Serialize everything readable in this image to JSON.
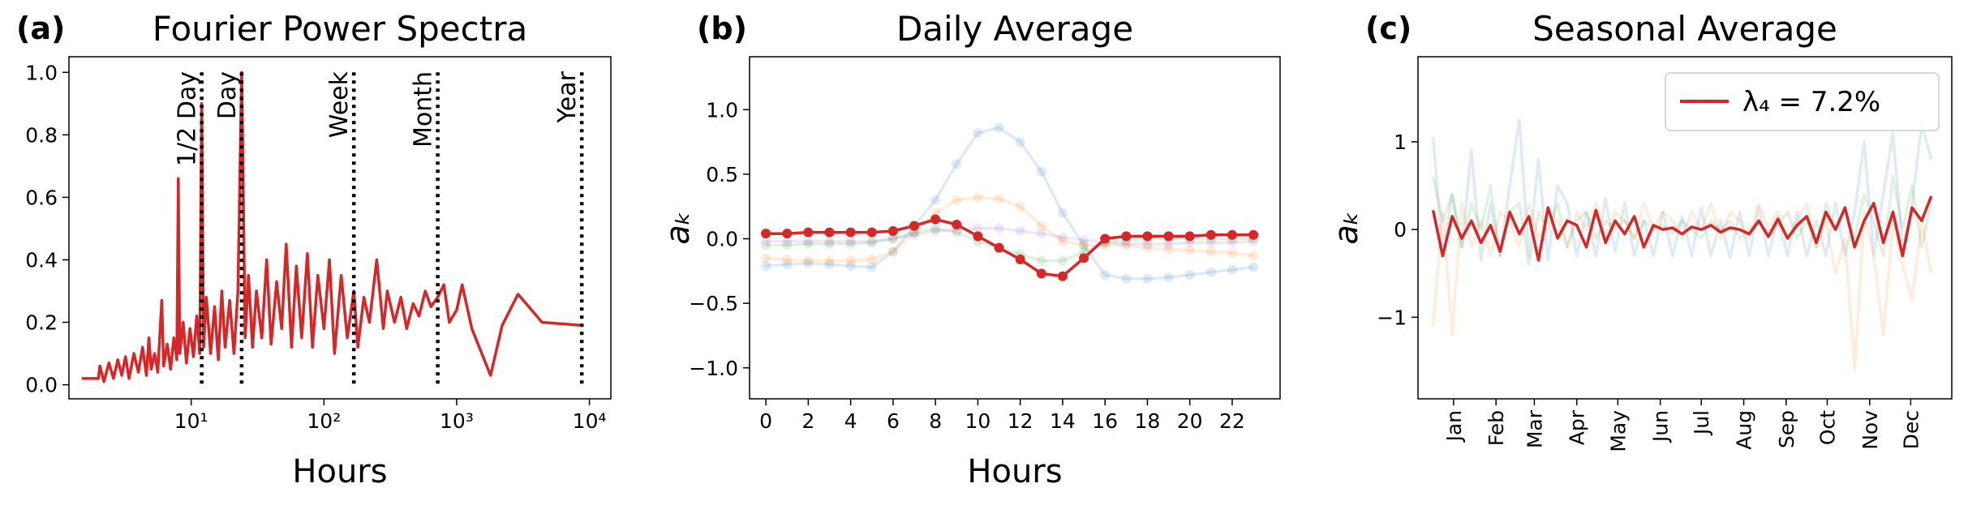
{
  "chart_data": [
    {
      "type": "line",
      "panel_label": "(a)",
      "title": "Fourier Power Spectra",
      "xlabel": "Hours",
      "xscale": "log",
      "xlim": [
        1.2,
        14500
      ],
      "ylim": [
        -0.045,
        1.05
      ],
      "xticks": [
        {
          "value": 10,
          "label": "10¹"
        },
        {
          "value": 100,
          "label": "10²"
        },
        {
          "value": 1000,
          "label": "10³"
        },
        {
          "value": 10000,
          "label": "10⁴"
        }
      ],
      "yticks": [
        {
          "value": 0,
          "label": "0.0"
        },
        0.2,
        0.4,
        0.6,
        0.8,
        {
          "value": 1,
          "label": "1.0"
        }
      ],
      "x": [
        1.5,
        2,
        2.05,
        2.2,
        2.4,
        2.6,
        2.8,
        3,
        3.2,
        3.4,
        3.7,
        4,
        4.3,
        4.6,
        4.8,
        5,
        5.3,
        5.6,
        6,
        6.2,
        6.6,
        7,
        7.4,
        7.8,
        8,
        8.2,
        8.7,
        9.2,
        9.8,
        10.4,
        11,
        11.6,
        12,
        12.4,
        13,
        14,
        15,
        16,
        17,
        18,
        19.5,
        21,
        22.5,
        24,
        25.5,
        27,
        29,
        31,
        34,
        37,
        40,
        44,
        48,
        52,
        57,
        62,
        68,
        75,
        82,
        90,
        100,
        110,
        120,
        135,
        150,
        168,
        180,
        200,
        220,
        250,
        280,
        300,
        340,
        380,
        420,
        470,
        520,
        580,
        640,
        720,
        800,
        880,
        1000,
        1100,
        1300,
        1800,
        2200,
        2900,
        4400,
        8760
      ],
      "series": [
        {
          "color": "#d62728",
          "values": [
            0.02,
            0.02,
            0.06,
            0.01,
            0.07,
            0.02,
            0.08,
            0.03,
            0.09,
            0.02,
            0.1,
            0.04,
            0.12,
            0.03,
            0.15,
            0.05,
            0.1,
            0.04,
            0.27,
            0.06,
            0.13,
            0.05,
            0.15,
            0.08,
            0.66,
            0.1,
            0.2,
            0.07,
            0.18,
            0.09,
            0.22,
            0.1,
            0.9,
            0.12,
            0.28,
            0.1,
            0.25,
            0.08,
            0.3,
            0.12,
            0.27,
            0.1,
            0.3,
            1.0,
            0.15,
            0.35,
            0.12,
            0.3,
            0.15,
            0.4,
            0.13,
            0.33,
            0.18,
            0.45,
            0.12,
            0.38,
            0.15,
            0.42,
            0.12,
            0.35,
            0.18,
            0.4,
            0.1,
            0.35,
            0.15,
            0.3,
            0.12,
            0.28,
            0.2,
            0.4,
            0.18,
            0.3,
            0.2,
            0.28,
            0.18,
            0.26,
            0.22,
            0.3,
            0.25,
            0.28,
            0.32,
            0.2,
            0.24,
            0.32,
            0.18,
            0.03,
            0.19,
            0.29,
            0.2,
            0.19
          ]
        }
      ],
      "markers": [
        {
          "x": 12,
          "label": "1/2 Day"
        },
        {
          "x": 24,
          "label": "Day"
        },
        {
          "x": 168,
          "label": "Week"
        },
        {
          "x": 720,
          "label": "Month"
        },
        {
          "x": 8760,
          "label": "Year"
        }
      ]
    },
    {
      "type": "line",
      "panel_label": "(b)",
      "title": "Daily Average",
      "xlabel": "Hours",
      "ylabel": "aₖ",
      "marker": true,
      "xlim": [
        -0.77,
        24.26
      ],
      "ylim": [
        -1.24,
        1.41
      ],
      "xticks": [
        0,
        2,
        4,
        6,
        8,
        10,
        12,
        14,
        16,
        18,
        20,
        22
      ],
      "yticks": [
        {
          "value": -1,
          "label": "−1.0"
        },
        {
          "value": -0.5,
          "label": "−0.5"
        },
        {
          "value": 0,
          "label": "0.0"
        },
        0.5,
        {
          "value": 1,
          "label": "1.0"
        }
      ],
      "x": [
        0,
        1,
        2,
        3,
        4,
        5,
        6,
        7,
        8,
        9,
        10,
        11,
        12,
        13,
        14,
        15,
        16,
        17,
        18,
        19,
        20,
        21,
        22,
        23
      ],
      "series": [
        {
          "color": "#1f77b4",
          "alpha": 0.15,
          "values": [
            -0.21,
            -0.2,
            -0.19,
            -0.2,
            -0.21,
            -0.22,
            -0.1,
            0.1,
            0.3,
            0.58,
            0.82,
            0.86,
            0.75,
            0.52,
            0.2,
            -0.05,
            -0.28,
            -0.31,
            -0.31,
            -0.3,
            -0.28,
            -0.26,
            -0.24,
            -0.22
          ]
        },
        {
          "color": "#ff7f0e",
          "alpha": 0.15,
          "values": [
            -0.15,
            -0.16,
            -0.17,
            -0.17,
            -0.17,
            -0.16,
            -0.1,
            0.05,
            0.2,
            0.3,
            0.32,
            0.31,
            0.25,
            0.1,
            -0.02,
            -0.05,
            -0.05,
            -0.05,
            -0.07,
            -0.08,
            -0.09,
            -0.1,
            -0.11,
            -0.13
          ]
        },
        {
          "color": "#2ca02c",
          "alpha": 0.15,
          "values": [
            -0.05,
            -0.05,
            -0.04,
            -0.04,
            -0.04,
            -0.03,
            0.0,
            0.05,
            0.08,
            0.05,
            -0.02,
            -0.07,
            -0.12,
            -0.17,
            -0.17,
            -0.1,
            -0.03,
            -0.01,
            0.0,
            0.0,
            0.0,
            0.0,
            0.0,
            0.0
          ]
        },
        {
          "color": "#9467bd",
          "alpha": 0.15,
          "values": [
            -0.02,
            -0.02,
            -0.02,
            -0.02,
            -0.02,
            -0.02,
            0.0,
            0.03,
            0.06,
            0.07,
            0.08,
            0.08,
            0.06,
            0.04,
            0.01,
            -0.01,
            -0.03,
            -0.04,
            -0.04,
            -0.04,
            -0.03,
            -0.03,
            -0.03,
            -0.02
          ]
        },
        {
          "color": "#d62728",
          "values": [
            0.04,
            0.04,
            0.05,
            0.05,
            0.05,
            0.05,
            0.06,
            0.1,
            0.15,
            0.11,
            0.02,
            -0.07,
            -0.16,
            -0.27,
            -0.29,
            -0.15,
            0.0,
            0.02,
            0.02,
            0.02,
            0.02,
            0.03,
            0.03,
            0.03
          ]
        }
      ]
    },
    {
      "type": "line",
      "panel_label": "(c)",
      "title": "Seasonal Average",
      "ylabel": "aₖ",
      "legend": "upper right",
      "xlim": [
        -11,
        379
      ],
      "ylim": [
        -1.93,
        1.97
      ],
      "xticks": [
        {
          "value": 15,
          "label": "Jan"
        },
        {
          "value": 46,
          "label": "Feb"
        },
        {
          "value": 74,
          "label": "Mar"
        },
        {
          "value": 105,
          "label": "Apr"
        },
        {
          "value": 135,
          "label": "May"
        },
        {
          "value": 166,
          "label": "Jun"
        },
        {
          "value": 196,
          "label": "Jul"
        },
        {
          "value": 227,
          "label": "Aug"
        },
        {
          "value": 258,
          "label": "Sep"
        },
        {
          "value": 288,
          "label": "Oct"
        },
        {
          "value": 319,
          "label": "Nov"
        },
        {
          "value": 349,
          "label": "Dec"
        }
      ],
      "yticks": [
        {
          "value": -1,
          "label": "−1"
        },
        0,
        1
      ],
      "x": [
        0,
        7,
        14,
        21,
        28,
        35,
        42,
        49,
        56,
        63,
        70,
        77,
        84,
        91,
        98,
        105,
        112,
        119,
        126,
        133,
        140,
        147,
        154,
        161,
        168,
        175,
        182,
        189,
        196,
        203,
        210,
        217,
        224,
        231,
        238,
        245,
        252,
        259,
        266,
        273,
        280,
        287,
        294,
        301,
        308,
        315,
        322,
        329,
        336,
        343,
        350,
        357,
        364
      ],
      "series": [
        {
          "color": "#1f77b4",
          "alpha": 0.15,
          "values": [
            1.05,
            -0.3,
            0.4,
            -0.2,
            0.9,
            -0.35,
            0.3,
            -0.3,
            0.5,
            1.25,
            -0.3,
            0.8,
            -0.35,
            0.5,
            0.3,
            -0.3,
            0.2,
            -0.3,
            0.35,
            -0.25,
            0.3,
            -0.3,
            0.1,
            -0.3,
            0.2,
            -0.3,
            0.15,
            -0.3,
            0.25,
            -0.3,
            0.1,
            -0.32,
            0.2,
            -0.3,
            0.25,
            -0.3,
            0.15,
            -0.3,
            0.2,
            -0.3,
            0.1,
            -0.3,
            0.3,
            -0.3,
            0.2,
            1.0,
            -0.3,
            0.4,
            1.1,
            -0.2,
            0.3,
            1.2,
            0.8
          ]
        },
        {
          "color": "#ff7f0e",
          "alpha": 0.15,
          "values": [
            -1.1,
            0.2,
            -1.2,
            0.3,
            -0.2,
            0.1,
            -0.3,
            0.2,
            0.1,
            -0.2,
            0.3,
            -0.1,
            0.2,
            0.1,
            -0.2,
            0.2,
            0.0,
            0.3,
            -0.1,
            0.2,
            0.1,
            -0.1,
            0.3,
            0.0,
            0.2,
            0.1,
            -0.1,
            0.2,
            0.0,
            0.3,
            -0.1,
            0.2,
            0.1,
            -0.1,
            0.3,
            0.0,
            0.2,
            -0.1,
            0.1,
            0.3,
            -0.2,
            0.1,
            -0.5,
            -0.1,
            -1.6,
            0.2,
            -0.3,
            -1.2,
            0.1,
            -0.4,
            -0.8,
            0.1,
            -0.5
          ]
        },
        {
          "color": "#2ca02c",
          "alpha": 0.15,
          "values": [
            0.6,
            0.1,
            0.4,
            -0.2,
            0.3,
            0.0,
            0.5,
            -0.3,
            0.2,
            0.3,
            -0.4,
            0.2,
            0.0,
            0.3,
            -0.2,
            0.1,
            0.2,
            -0.1,
            0.1,
            0.0,
            0.1,
            -0.1,
            0.1,
            0.0,
            0.05,
            -0.05,
            0.1,
            0.0,
            -0.1,
            0.1,
            0.0,
            0.1,
            -0.1,
            0.0,
            0.1,
            -0.1,
            0.05,
            0.2,
            -0.1,
            0.1,
            -0.2,
            0.3,
            0.0,
            0.2,
            -0.1,
            0.4,
            0.1,
            -0.3,
            0.6,
            0.0,
            0.5,
            -0.2,
            0.3
          ]
        },
        {
          "name": "λ₄ = 7.2%",
          "color": "#d62728",
          "values": [
            0.22,
            -0.3,
            0.15,
            -0.1,
            0.1,
            -0.15,
            0.05,
            -0.25,
            0.2,
            -0.05,
            0.15,
            -0.35,
            0.25,
            -0.1,
            0.1,
            0.05,
            -0.2,
            0.22,
            -0.15,
            0.1,
            -0.05,
            0.15,
            -0.2,
            0.05,
            0.0,
            0.02,
            -0.05,
            0.03,
            0.0,
            0.05,
            -0.03,
            0.02,
            0.0,
            -0.05,
            0.1,
            -0.08,
            0.12,
            -0.1,
            0.05,
            0.15,
            -0.15,
            0.2,
            0.0,
            0.25,
            -0.2,
            0.1,
            0.3,
            -0.15,
            0.2,
            -0.3,
            0.25,
            0.1,
            0.38
          ]
        }
      ]
    }
  ]
}
